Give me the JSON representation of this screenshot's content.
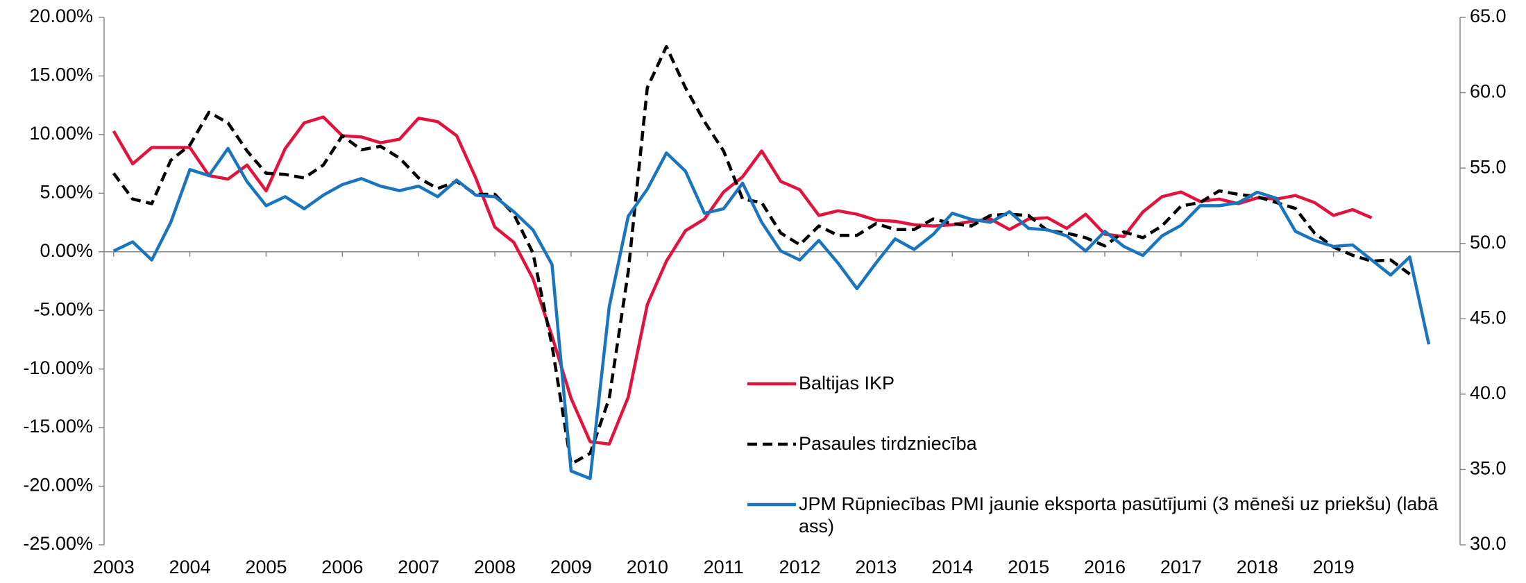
{
  "chart_data": {
    "type": "line",
    "x": [
      2003,
      2003.25,
      2003.5,
      2003.75,
      2004,
      2004.25,
      2004.5,
      2004.75,
      2005,
      2005.25,
      2005.5,
      2005.75,
      2006,
      2006.25,
      2006.5,
      2006.75,
      2007,
      2007.25,
      2007.5,
      2007.75,
      2008,
      2008.25,
      2008.5,
      2008.75,
      2009,
      2009.25,
      2009.5,
      2009.75,
      2010,
      2010.25,
      2010.5,
      2010.75,
      2011,
      2011.25,
      2011.5,
      2011.75,
      2012,
      2012.25,
      2012.5,
      2012.75,
      2013,
      2013.25,
      2013.5,
      2013.75,
      2014,
      2014.25,
      2014.5,
      2014.75,
      2015,
      2015.25,
      2015.5,
      2015.75,
      2016,
      2016.25,
      2016.5,
      2016.75,
      2017,
      2017.25,
      2017.5,
      2017.75,
      2018,
      2018.25,
      2018.5,
      2018.75,
      2019,
      2019.25,
      2019.5,
      2019.75,
      2020,
      2020.25
    ],
    "series": [
      {
        "name": "Baltijas IKP",
        "color": "#e0143c",
        "dash": false,
        "values": [
          10.3,
          7.5,
          8.9,
          8.9,
          8.9,
          6.5,
          6.2,
          7.4,
          5.2,
          8.8,
          11.0,
          11.5,
          9.9,
          9.8,
          9.3,
          9.6,
          11.4,
          11.1,
          9.9,
          6.3,
          2.1,
          0.8,
          -2.3,
          -7.2,
          -12.5,
          -16.2,
          -16.4,
          -12.4,
          -4.5,
          -0.8,
          1.8,
          2.8,
          5.1,
          6.4,
          8.6,
          6.0,
          5.3,
          3.1,
          3.5,
          3.2,
          2.7,
          2.6,
          2.3,
          2.2,
          2.3,
          2.6,
          2.8,
          1.9,
          2.8,
          2.9,
          2.0,
          3.2,
          1.5,
          1.3,
          3.4,
          4.7,
          5.1,
          4.3,
          4.5,
          4.1,
          4.6,
          4.5,
          4.8,
          4.2,
          3.1,
          3.6,
          2.9,
          null,
          null,
          null
        ]
      },
      {
        "name": "Pasaules tirdzniecība",
        "color": "#000000",
        "dash": true,
        "values": [
          6.7,
          4.5,
          4.1,
          7.8,
          9.1,
          11.9,
          11.0,
          8.6,
          6.7,
          6.6,
          6.3,
          7.4,
          9.9,
          8.7,
          9.0,
          8.0,
          6.3,
          5.4,
          6.0,
          4.9,
          4.9,
          3.2,
          -0.1,
          -8.0,
          -18.1,
          -17.2,
          -12.5,
          -1.7,
          14.0,
          17.5,
          14.0,
          11.1,
          8.6,
          4.5,
          4.2,
          1.6,
          0.6,
          2.2,
          1.4,
          1.4,
          2.4,
          1.9,
          1.9,
          2.8,
          2.4,
          2.2,
          3.1,
          3.2,
          3.1,
          1.8,
          1.6,
          1.2,
          0.5,
          1.7,
          1.2,
          2.2,
          3.9,
          4.2,
          5.2,
          4.9,
          4.7,
          4.2,
          3.7,
          1.6,
          0.4,
          -0.3,
          -0.8,
          -0.7,
          -1.9,
          null
        ]
      },
      {
        "name": "JPM Rūpniecības PMI jaunie eksporta pasūtījumi (3 mēneši uz priekšu) (labā ass)",
        "color": "#1a75bc",
        "dash": false,
        "axis": "y2",
        "values": [
          49.5,
          50.1,
          48.9,
          51.4,
          54.9,
          54.5,
          56.3,
          54.1,
          52.5,
          53.1,
          52.3,
          53.2,
          53.9,
          54.3,
          53.8,
          53.5,
          53.8,
          53.1,
          54.2,
          53.2,
          53.1,
          52.1,
          50.9,
          48.6,
          34.9,
          34.4,
          45.8,
          51.8,
          53.6,
          56.0,
          54.8,
          52.0,
          52.3,
          54.0,
          51.4,
          49.5,
          48.9,
          50.2,
          48.7,
          47.0,
          48.7,
          50.3,
          49.6,
          50.6,
          52.0,
          51.6,
          51.4,
          52.1,
          51.0,
          50.9,
          50.5,
          49.5,
          50.8,
          49.8,
          49.2,
          50.5,
          51.2,
          52.5,
          52.5,
          52.7,
          53.4,
          53.0,
          50.8,
          50.2,
          49.8,
          49.9,
          48.9,
          47.9,
          49.1,
          43.3
        ]
      }
    ],
    "xlim": [
      2002.875,
      2020.66
    ],
    "xticks": [
      2003,
      2004,
      2005,
      2006,
      2007,
      2008,
      2009,
      2010,
      2011,
      2012,
      2013,
      2014,
      2015,
      2016,
      2017,
      2018,
      2019
    ],
    "ylim": [
      -25,
      20
    ],
    "yticks": [
      {
        "value": -25,
        "label": "-25.00%"
      },
      {
        "value": -20,
        "label": "-20.00%"
      },
      {
        "value": -15,
        "label": "-15.00%"
      },
      {
        "value": -10,
        "label": "-10.00%"
      },
      {
        "value": -5,
        "label": "-5.00%"
      },
      {
        "value": 0,
        "label": "0.00%"
      },
      {
        "value": 5,
        "label": "5.00%"
      },
      {
        "value": 10,
        "label": "10.00%"
      },
      {
        "value": 15,
        "label": "15.00%"
      },
      {
        "value": 20,
        "label": "20.00%"
      }
    ],
    "y2lim": [
      30,
      65
    ],
    "y2ticks": [
      {
        "value": 30,
        "label": "30.0"
      },
      {
        "value": 35,
        "label": "35.0"
      },
      {
        "value": 40,
        "label": "40.0"
      },
      {
        "value": 45,
        "label": "45.0"
      },
      {
        "value": 50,
        "label": "50.0"
      },
      {
        "value": 55,
        "label": "55.0"
      },
      {
        "value": 60,
        "label": "60.0"
      },
      {
        "value": 65,
        "label": "65.0"
      }
    ],
    "grid": false
  }
}
